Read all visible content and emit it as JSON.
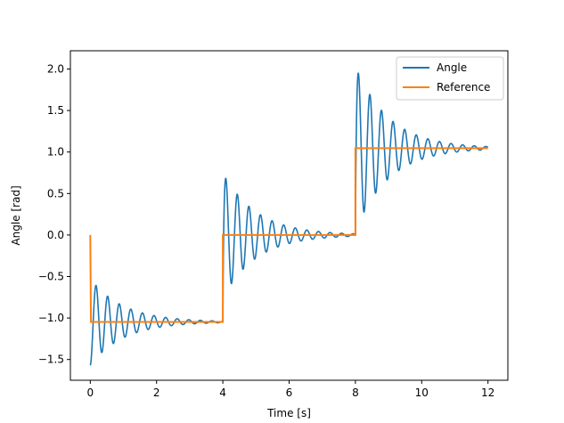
{
  "chart_data": {
    "type": "line",
    "title": "",
    "xlabel": "Time [s]",
    "ylabel": "Angle [rad]",
    "xlim": [
      -0.6,
      12.6
    ],
    "ylim": [
      -1.75,
      2.22
    ],
    "xticks": [
      0,
      2,
      4,
      6,
      8,
      10,
      12
    ],
    "xtick_labels": [
      "0",
      "2",
      "4",
      "6",
      "8",
      "10",
      "12"
    ],
    "yticks": [
      -1.5,
      -1.0,
      -0.5,
      0.0,
      0.5,
      1.0,
      1.5,
      2.0
    ],
    "ytick_labels": [
      "−1.5",
      "−1.0",
      "−0.5",
      "0.0",
      "0.5",
      "1.0",
      "1.5",
      "2.0"
    ],
    "grid": false,
    "legend_position": "top-right",
    "series": [
      {
        "name": "Angle",
        "color": "#1f77b4",
        "response": {
          "segments": [
            {
              "t_start": 0,
              "t_end": 4,
              "start_value": -1.57,
              "target": -1.047,
              "amplitude": 0.45,
              "overshoot_start": -1.57
            },
            {
              "t_start": 4,
              "t_end": 8,
              "start_value": -1.047,
              "target": 0.0,
              "amplitude": 0.76
            },
            {
              "t_start": 8,
              "t_end": 12,
              "start_value": 0.0,
              "target": 1.047,
              "amplitude": 1.0
            }
          ],
          "period": 0.35,
          "decay_time": 1.0
        }
      },
      {
        "name": "Reference",
        "color": "#ff7f0e",
        "x": [
          0,
          0.02,
          4,
          4,
          8,
          8,
          12
        ],
        "values": [
          0.0,
          -1.047,
          -1.047,
          0.0,
          0.0,
          1.047,
          1.047
        ]
      }
    ]
  }
}
